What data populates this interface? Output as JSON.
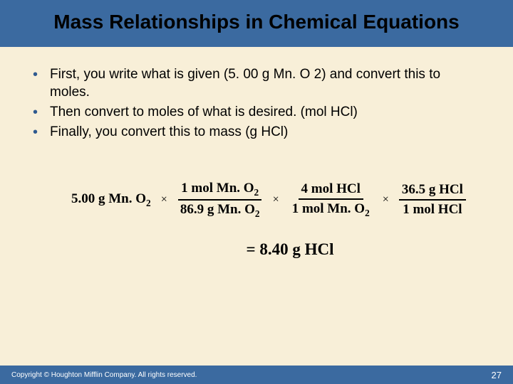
{
  "colors": {
    "background": "#f8efd8",
    "band": "#3b6aa0",
    "band_text": "#000000",
    "bullet_color": "#2f5a8f",
    "body_text": "#000000",
    "footer_bg": "#3b6aa0",
    "footer_text": "#ffffff"
  },
  "title": "Mass Relationships in Chemical Equations",
  "bullets": [
    "First, you write what is given  (5. 00 g Mn. O 2) and convert this to moles.",
    "Then convert to moles of what is desired. (mol HCl)",
    "Finally, you convert this to mass (g HCl)"
  ],
  "equation": {
    "lead": "5.00 g Mn. O",
    "lead_sub": "2",
    "times_glyph": "×",
    "terms": [
      {
        "num_pre": "1 mol Mn. O",
        "num_sub": "2",
        "den_pre": "86.9 g Mn. O",
        "den_sub": "2"
      },
      {
        "num_pre": "4 mol HCl",
        "num_sub": "",
        "den_pre": "1 mol Mn. O",
        "den_sub": "2"
      },
      {
        "num_pre": "36.5 g HCl",
        "num_sub": "",
        "den_pre": "1 mol HCl",
        "den_sub": ""
      }
    ],
    "result": "= 8.40 g HCl"
  },
  "footer": {
    "copyright": "Copyright © Houghton Mifflin Company. All rights reserved.",
    "page": "27"
  }
}
